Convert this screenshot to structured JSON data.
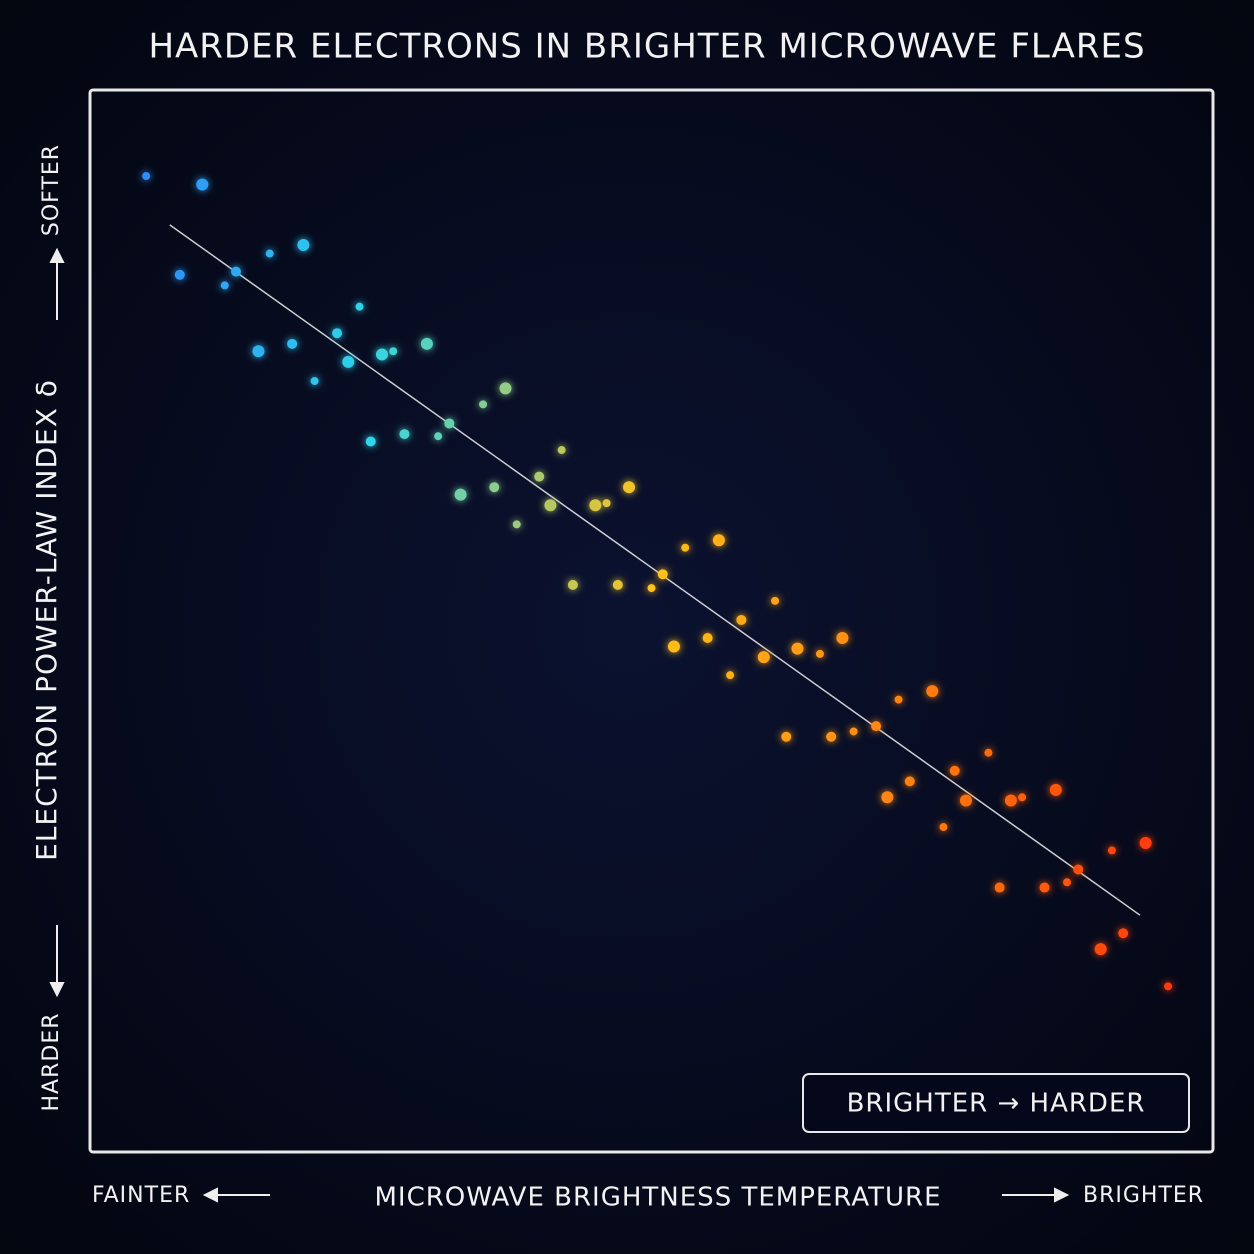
{
  "chart_data": {
    "type": "scatter",
    "title": "HARDER ELECTRONS IN BRIGHTER MICROWAVE FLARES",
    "y_label": "ELECTRON POWER-LAW INDEX δ",
    "y_label_top": "SOFTER",
    "y_label_bottom": "HARDER",
    "x_label": "MICROWAVE BRIGHTNESS TEMPERATURE",
    "x_label_left": "FAINTER",
    "x_label_right": "BRIGHTER",
    "annotation": "BRIGHTER → HARDER",
    "xlim": [
      0,
      100
    ],
    "ylim": [
      0,
      100
    ],
    "color_stops": [
      "#2f7bff",
      "#2fd6e8",
      "#ffc21a",
      "#ff7a10",
      "#ff2a10"
    ],
    "trend_line": {
      "color": "#ffffff",
      "x": [
        7.1,
        93.5
      ],
      "y": [
        87.3,
        22.3
      ]
    },
    "series": [
      {
        "x": [
          5,
          8,
          10,
          12,
          13,
          15,
          16,
          18,
          19,
          20,
          22,
          23,
          24,
          25,
          26,
          27,
          28,
          30,
          31,
          32,
          33,
          35,
          36,
          37,
          38,
          40,
          41,
          42,
          43,
          45,
          46,
          47,
          48,
          50,
          51,
          52,
          53,
          55,
          56,
          57,
          58,
          60,
          61,
          62,
          63,
          65,
          66,
          67,
          68,
          70,
          71,
          72,
          73,
          75,
          76,
          77,
          78,
          80,
          81,
          82,
          83,
          85,
          86,
          87,
          88,
          90,
          91,
          92,
          94,
          96
        ],
        "values": [
          91.9,
          82.6,
          91.1,
          81.6,
          82.9,
          75.4,
          84.6,
          76.1,
          85.4,
          72.6,
          77.1,
          74.4,
          79.6,
          66.9,
          75.1,
          75.4,
          67.6,
          76.1,
          67.4,
          68.6,
          61.9,
          70.4,
          62.6,
          71.9,
          59.1,
          63.6,
          60.9,
          66.1,
          53.4,
          60.9,
          61.1,
          53.4,
          62.6,
          53.1,
          54.4,
          47.6,
          56.9,
          48.4,
          57.6,
          44.9,
          50.1,
          46.6,
          51.9,
          39.1,
          47.4,
          46.9,
          39.1,
          48.4,
          39.6,
          40.1,
          33.4,
          42.6,
          34.9,
          43.4,
          30.6,
          35.9,
          33.1,
          37.6,
          24.9,
          33.1,
          33.4,
          24.9,
          34.1,
          25.4,
          26.6,
          19.1,
          28.4,
          20.6,
          29.1,
          15.6
        ]
      }
    ]
  }
}
